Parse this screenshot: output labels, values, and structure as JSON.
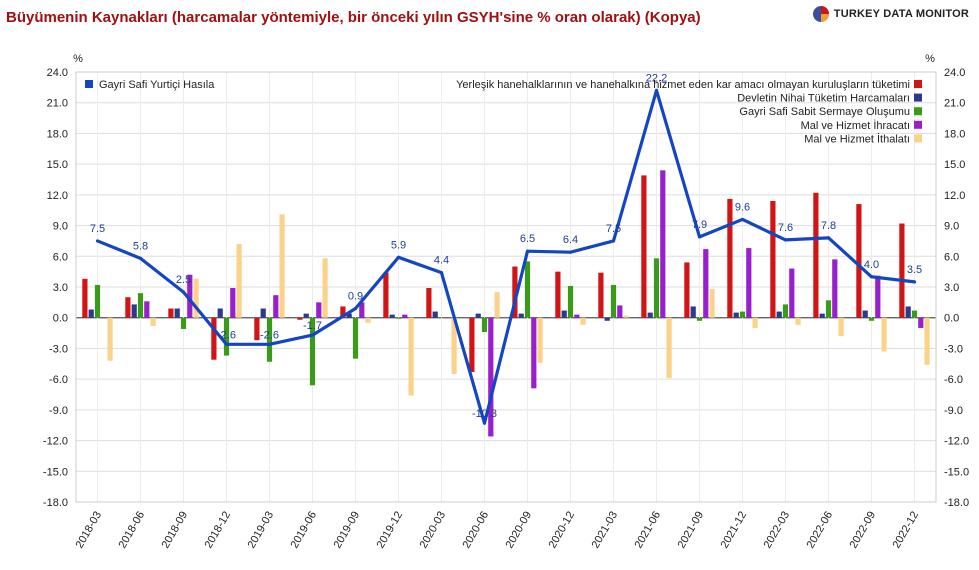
{
  "title": "Büyümenin Kaynakları (harcamalar yöntemiyle, bir önceki yılın GSYH'sine % oran olarak) (Kopya)",
  "brand": "TURKEY DATA MONITOR",
  "colors": {
    "gdp": "#1446c2",
    "households": "#d11414",
    "government": "#2d3a8c",
    "investment": "#3a9a1a",
    "exports": "#9a1fcc",
    "imports": "#fbd28a",
    "title": "#a01010"
  },
  "chart_data": {
    "type": "bar",
    "y_unit_left": "%",
    "y_unit_right": "%",
    "ylim": [
      -18,
      24
    ],
    "yticks": [
      "24.0",
      "21.0",
      "18.0",
      "15.0",
      "12.0",
      "9.0",
      "6.0",
      "3.0",
      "0.0",
      "-3.0",
      "-6.0",
      "-9.0",
      "-12.0",
      "-15.0",
      "-18.0"
    ],
    "grid": true,
    "legend_placement": "top",
    "categories": [
      "2018-03",
      "2018-06",
      "2018-09",
      "2018-12",
      "2019-03",
      "2019-06",
      "2019-09",
      "2019-12",
      "2020-03",
      "2020-06",
      "2020-09",
      "2020-12",
      "2021-03",
      "2021-06",
      "2021-09",
      "2021-12",
      "2022-03",
      "2022-06",
      "2022-09",
      "2022-12"
    ],
    "line_series": {
      "name": "Gayri Safi Yurtiçi Hasıla",
      "type": "line",
      "values": [
        7.5,
        5.8,
        2.5,
        -2.6,
        -2.6,
        -1.7,
        0.9,
        5.9,
        4.4,
        -10.3,
        6.5,
        6.4,
        7.5,
        22.2,
        7.9,
        9.6,
        7.6,
        7.8,
        4.0,
        3.5
      ],
      "labels": [
        "7.5",
        "5.8",
        "2.5",
        "-2.6",
        "-2.6",
        "-1.7",
        "0.9",
        "5.9",
        "4.4",
        "-10.3",
        "6.5",
        "6.4",
        "7.5",
        "22.2",
        "7.9",
        "9.6",
        "7.6",
        "7.8",
        "4.0",
        "3.5"
      ]
    },
    "series": [
      {
        "name": "Yerleşik hanehalklarının ve hanehalkına hizmet eden kar amacı olmayan kuruluşların tüketimi",
        "values": [
          3.8,
          2.0,
          0.9,
          -4.1,
          -2.2,
          -0.2,
          1.1,
          4.4,
          2.9,
          -5.3,
          5.0,
          4.5,
          4.4,
          13.9,
          5.4,
          11.6,
          11.4,
          12.2,
          11.1,
          9.2
        ]
      },
      {
        "name": "Devletin Nihai Tüketim Harcamaları",
        "values": [
          0.8,
          1.3,
          0.9,
          0.9,
          0.9,
          0.4,
          0.4,
          0.3,
          0.6,
          0.4,
          0.4,
          0.7,
          -0.3,
          0.5,
          1.1,
          0.5,
          0.6,
          0.4,
          0.7,
          1.1
        ]
      },
      {
        "name": "Gayri Safi Sabit Sermaye Oluşumu",
        "values": [
          3.2,
          2.4,
          -1.1,
          -3.7,
          -4.3,
          -6.6,
          -4.0,
          -0.1,
          0.0,
          -1.4,
          5.5,
          3.1,
          3.2,
          5.8,
          -0.3,
          0.6,
          1.3,
          1.7,
          -0.3,
          0.7
        ]
      },
      {
        "name": "Mal ve Hizmet İhracatı",
        "values": [
          0.0,
          1.6,
          4.2,
          2.9,
          2.2,
          1.5,
          1.5,
          0.3,
          0.0,
          -11.6,
          -6.9,
          0.3,
          1.2,
          14.4,
          6.7,
          6.8,
          4.8,
          5.7,
          4.1,
          -1.0
        ]
      },
      {
        "name": "Mal ve Hizmet İthalatı",
        "values": [
          -4.2,
          -0.8,
          3.8,
          7.2,
          10.1,
          5.8,
          -0.5,
          -7.6,
          -5.5,
          2.5,
          -4.4,
          -0.7,
          0.2,
          -5.9,
          2.8,
          -1.0,
          -0.7,
          -1.8,
          -3.3,
          -4.6
        ]
      }
    ]
  }
}
